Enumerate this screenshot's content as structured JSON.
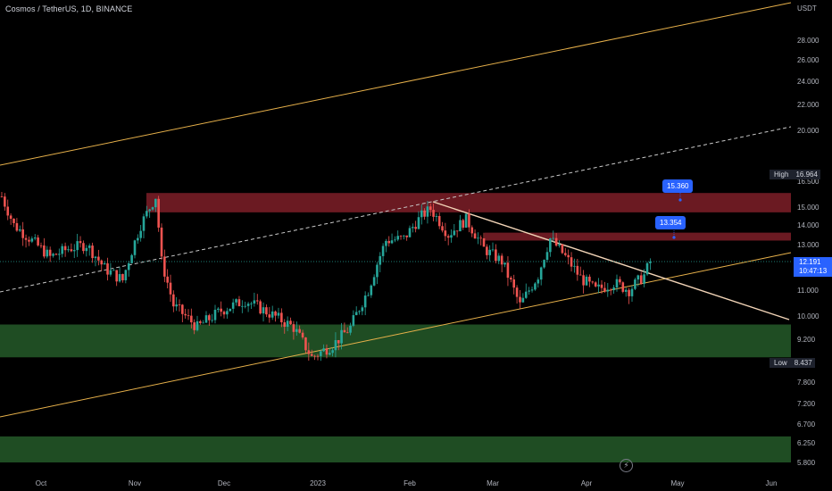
{
  "header": {
    "symbol_title": "Cosmos / TetherUS, 1D, BINANCE",
    "currency": "USDT"
  },
  "price_axis": {
    "ticks": [
      "28.000",
      "26.000",
      "24.000",
      "22.000",
      "20.000",
      "16.500",
      "15.000",
      "14.000",
      "13.000",
      "11.000",
      "10.000",
      "9.200",
      "7.800",
      "7.200",
      "6.700",
      "6.250",
      "5.800"
    ]
  },
  "time_axis": {
    "ticks": [
      "Oct",
      "Nov",
      "Dec",
      "2023",
      "Feb",
      "Mar",
      "Apr",
      "May",
      "Jun"
    ]
  },
  "labels": {
    "high": {
      "key": "High",
      "value": "16.964"
    },
    "low": {
      "key": "Low",
      "value": "8.437"
    },
    "last_price": "12.191",
    "countdown": "10:47:13",
    "callout_upper": "15.360",
    "callout_lower": "13.354"
  },
  "colors": {
    "up": "#26a69a",
    "down": "#ef5350",
    "accent": "#2962ff",
    "trend": "#e6b04a",
    "resistance": "#f2d4b7",
    "supply_zone": "#6b1a22",
    "demand_zone": "#1f4d23"
  },
  "chart_data": {
    "type": "candlestick",
    "symbol": "Cosmos / TetherUS",
    "interval": "1D",
    "exchange": "BINANCE",
    "last_price": 12.191,
    "high": 16.964,
    "low": 8.437,
    "zones": [
      {
        "kind": "supply",
        "from": 14.7,
        "to": 15.8
      },
      {
        "kind": "supply",
        "from": 13.2,
        "to": 13.6
      },
      {
        "kind": "demand",
        "from": 8.6,
        "to": 9.7
      },
      {
        "kind": "demand",
        "from": 5.65,
        "to": 6.4
      }
    ],
    "path": [
      {
        "date": "2022-09-18",
        "price": 15.6
      },
      {
        "date": "2022-09-22",
        "price": 14.0
      },
      {
        "date": "2022-09-28",
        "price": 13.2
      },
      {
        "date": "2022-10-04",
        "price": 12.4
      },
      {
        "date": "2022-10-10",
        "price": 12.8
      },
      {
        "date": "2022-10-16",
        "price": 13.0
      },
      {
        "date": "2022-10-22",
        "price": 11.9
      },
      {
        "date": "2022-10-28",
        "price": 11.4
      },
      {
        "date": "2022-11-03",
        "price": 14.0
      },
      {
        "date": "2022-11-08",
        "price": 15.6
      },
      {
        "date": "2022-11-10",
        "price": 12.2
      },
      {
        "date": "2022-11-14",
        "price": 10.4
      },
      {
        "date": "2022-11-22",
        "price": 9.6
      },
      {
        "date": "2022-11-30",
        "price": 10.2
      },
      {
        "date": "2022-12-08",
        "price": 10.6
      },
      {
        "date": "2022-12-16",
        "price": 10.1
      },
      {
        "date": "2022-12-24",
        "price": 9.6
      },
      {
        "date": "2022-12-30",
        "price": 8.6
      },
      {
        "date": "2023-01-06",
        "price": 9.0
      },
      {
        "date": "2023-01-12",
        "price": 9.6
      },
      {
        "date": "2023-01-18",
        "price": 11.0
      },
      {
        "date": "2023-01-24",
        "price": 13.2
      },
      {
        "date": "2023-01-30",
        "price": 13.3
      },
      {
        "date": "2023-02-05",
        "price": 14.5
      },
      {
        "date": "2023-02-08",
        "price": 14.9
      },
      {
        "date": "2023-02-14",
        "price": 13.5
      },
      {
        "date": "2023-02-20",
        "price": 14.3
      },
      {
        "date": "2023-02-26",
        "price": 12.8
      },
      {
        "date": "2023-03-04",
        "price": 12.2
      },
      {
        "date": "2023-03-10",
        "price": 10.4
      },
      {
        "date": "2023-03-16",
        "price": 11.6
      },
      {
        "date": "2023-03-20",
        "price": 13.3
      },
      {
        "date": "2023-03-24",
        "price": 12.6
      },
      {
        "date": "2023-03-30",
        "price": 11.5
      },
      {
        "date": "2023-04-04",
        "price": 11.0
      },
      {
        "date": "2023-04-10",
        "price": 11.3
      },
      {
        "date": "2023-04-15",
        "price": 11.0
      },
      {
        "date": "2023-04-20",
        "price": 11.6
      },
      {
        "date": "2023-04-22",
        "price": 12.19
      }
    ]
  }
}
